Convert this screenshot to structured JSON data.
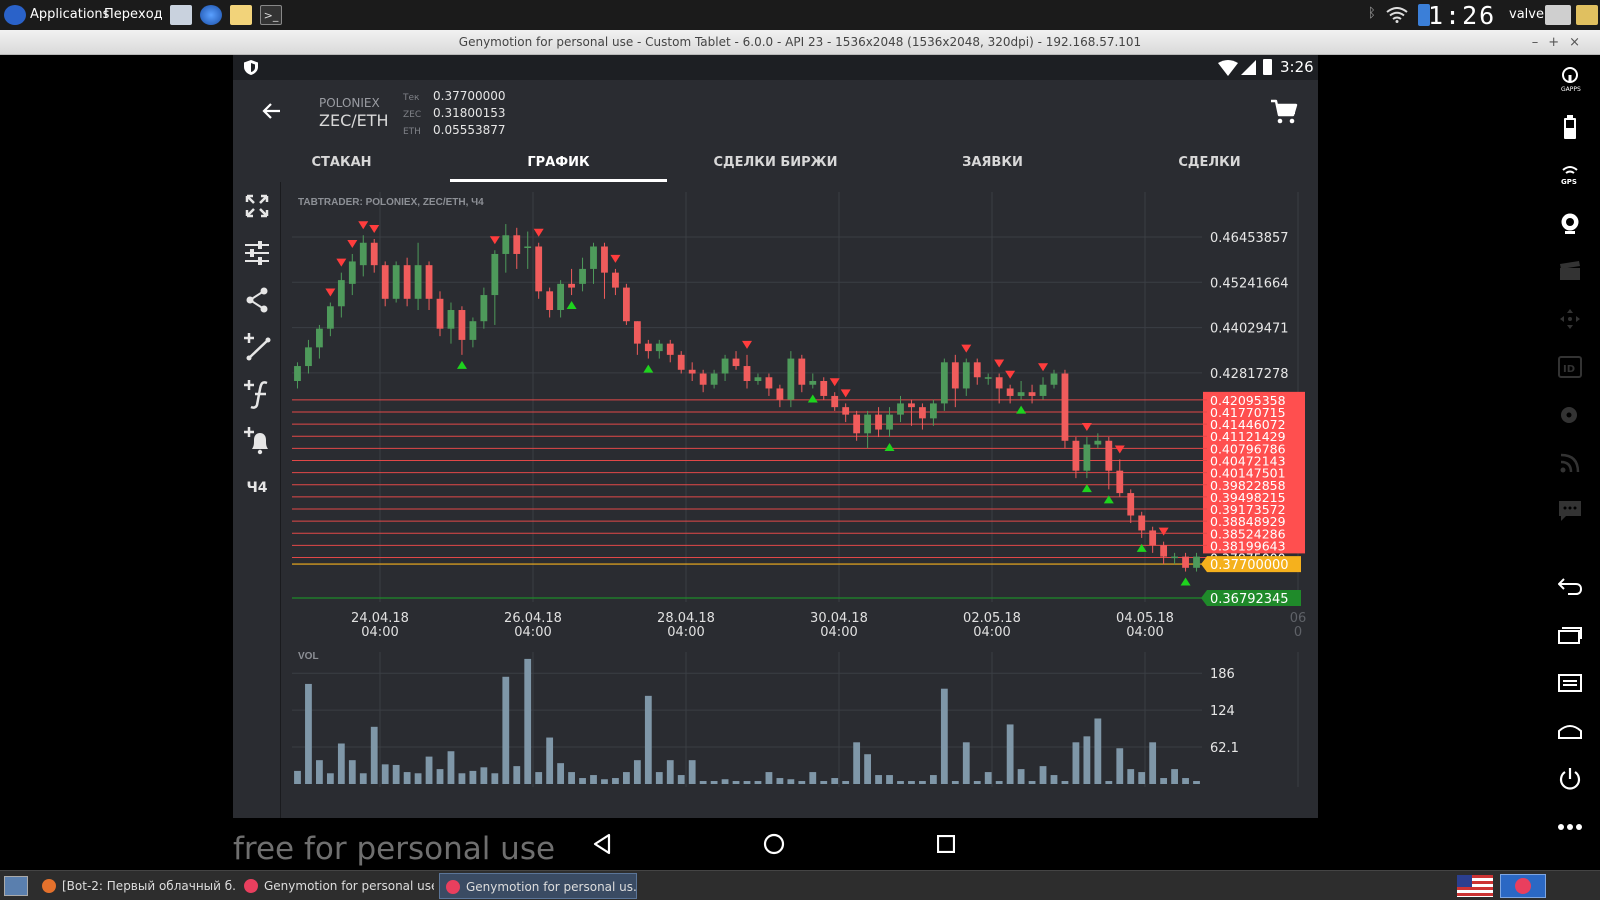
{
  "desktop": {
    "menu_applications": "Applications",
    "menu_places": "Переход",
    "clock": "1:26",
    "user": "valve"
  },
  "window": {
    "title": "Genymotion for personal use - Custom Tablet - 6.0.0 - API 23 - 1536x2048 (1536x2048, 320dpi) - 192.168.57.101"
  },
  "android_status": {
    "time": "3:26"
  },
  "app_header": {
    "exchange": "POLONIEX",
    "pair": "ZEC/ETH",
    "stats": [
      {
        "label": "Тек",
        "value": "0.37700000"
      },
      {
        "label": "ZEC",
        "value": "0.31800153"
      },
      {
        "label": "ETH",
        "value": "0.05553877"
      }
    ]
  },
  "tabs": [
    {
      "label": "СТАКАН",
      "active": false
    },
    {
      "label": "ГРАФИК",
      "active": true
    },
    {
      "label": "СДЕЛКИ БИРЖИ",
      "active": false
    },
    {
      "label": "ЗАЯВКИ",
      "active": false
    },
    {
      "label": "СДЕЛКИ",
      "active": false
    }
  ],
  "toolbar": {
    "tools": [
      "expand-icon",
      "sliders-icon",
      "share-icon",
      "add-line-icon",
      "add-function-icon",
      "add-alert-icon"
    ],
    "interval": "Ч4"
  },
  "chart_data": {
    "type": "candlestick",
    "title": "TABTRADER: POLONIEX, ZEC/ETH, Ч4",
    "x_tick_labels": [
      [
        "24.04.18",
        "04:00"
      ],
      [
        "26.04.18",
        "04:00"
      ],
      [
        "28.04.18",
        "04:00"
      ],
      [
        "30.04.18",
        "04:00"
      ],
      [
        "02.05.18",
        "04:00"
      ],
      [
        "04.05.18",
        "04:00"
      ],
      [
        "06",
        "0"
      ]
    ],
    "price_ticks": [
      "0.46453857",
      "0.45241664",
      "0.44029471",
      "0.42817278"
    ],
    "alert_levels": [
      "0.42095358",
      "0.41770715",
      "0.41446072",
      "0.41121429",
      "0.40796786",
      "0.40472143",
      "0.40147501",
      "0.39822858",
      "0.39498215",
      "0.39173572",
      "0.38848929",
      "0.38524286",
      "0.38199643",
      "0.37875000"
    ],
    "current_price": "0.37700000",
    "low_price": "0.36792345",
    "volume_label": "VOL",
    "volume_ticks": [
      "186",
      "124",
      "62.1"
    ],
    "candles": [
      [
        0.426,
        0.43,
        0.424,
        0.431
      ],
      [
        0.43,
        0.435,
        0.428,
        0.437
      ],
      [
        0.435,
        0.44,
        0.432,
        0.441
      ],
      [
        0.44,
        0.446,
        0.438,
        0.447
      ],
      [
        0.446,
        0.453,
        0.443,
        0.455
      ],
      [
        0.452,
        0.458,
        0.449,
        0.46
      ],
      [
        0.457,
        0.463,
        0.454,
        0.465
      ],
      [
        0.463,
        0.457,
        0.455,
        0.464
      ],
      [
        0.457,
        0.448,
        0.446,
        0.458
      ],
      [
        0.448,
        0.457,
        0.447,
        0.458
      ],
      [
        0.457,
        0.448,
        0.446,
        0.459
      ],
      [
        0.448,
        0.457,
        0.445,
        0.463
      ],
      [
        0.457,
        0.448,
        0.445,
        0.458
      ],
      [
        0.448,
        0.44,
        0.438,
        0.45
      ],
      [
        0.44,
        0.445,
        0.436,
        0.447
      ],
      [
        0.445,
        0.437,
        0.433,
        0.446
      ],
      [
        0.437,
        0.442,
        0.435,
        0.443
      ],
      [
        0.442,
        0.449,
        0.44,
        0.451
      ],
      [
        0.449,
        0.46,
        0.441,
        0.461
      ],
      [
        0.46,
        0.465,
        0.455,
        0.468
      ],
      [
        0.465,
        0.46,
        0.456,
        0.467
      ],
      [
        0.462,
        0.462,
        0.456,
        0.466
      ],
      [
        0.462,
        0.45,
        0.448,
        0.463
      ],
      [
        0.45,
        0.445,
        0.443,
        0.451
      ],
      [
        0.445,
        0.452,
        0.443,
        0.453
      ],
      [
        0.452,
        0.451,
        0.449,
        0.456
      ],
      [
        0.452,
        0.456,
        0.45,
        0.459
      ],
      [
        0.456,
        0.462,
        0.452,
        0.463
      ],
      [
        0.462,
        0.455,
        0.448,
        0.463
      ],
      [
        0.455,
        0.451,
        0.449,
        0.456
      ],
      [
        0.451,
        0.442,
        0.441,
        0.452
      ],
      [
        0.442,
        0.436,
        0.433,
        0.442
      ],
      [
        0.436,
        0.434,
        0.432,
        0.437
      ],
      [
        0.434,
        0.436,
        0.432,
        0.437
      ],
      [
        0.436,
        0.433,
        0.431,
        0.437
      ],
      [
        0.433,
        0.429,
        0.428,
        0.434
      ],
      [
        0.429,
        0.428,
        0.426,
        0.431
      ],
      [
        0.428,
        0.425,
        0.423,
        0.429
      ],
      [
        0.425,
        0.428,
        0.424,
        0.429
      ],
      [
        0.428,
        0.432,
        0.426,
        0.433
      ],
      [
        0.432,
        0.43,
        0.429,
        0.434
      ],
      [
        0.43,
        0.426,
        0.424,
        0.433
      ],
      [
        0.426,
        0.427,
        0.425,
        0.428
      ],
      [
        0.427,
        0.424,
        0.422,
        0.428
      ],
      [
        0.424,
        0.421,
        0.419,
        0.425
      ],
      [
        0.421,
        0.432,
        0.419,
        0.434
      ],
      [
        0.432,
        0.425,
        0.423,
        0.433
      ],
      [
        0.425,
        0.426,
        0.424,
        0.428
      ],
      [
        0.426,
        0.422,
        0.421,
        0.427
      ],
      [
        0.422,
        0.419,
        0.418,
        0.423
      ],
      [
        0.419,
        0.417,
        0.415,
        0.42
      ],
      [
        0.417,
        0.412,
        0.41,
        0.418
      ],
      [
        0.412,
        0.417,
        0.408,
        0.418
      ],
      [
        0.417,
        0.413,
        0.411,
        0.419
      ],
      [
        0.413,
        0.417,
        0.411,
        0.419
      ],
      [
        0.417,
        0.42,
        0.415,
        0.422
      ],
      [
        0.42,
        0.419,
        0.414,
        0.421
      ],
      [
        0.419,
        0.416,
        0.413,
        0.42
      ],
      [
        0.416,
        0.42,
        0.414,
        0.421
      ],
      [
        0.42,
        0.431,
        0.418,
        0.432
      ],
      [
        0.431,
        0.424,
        0.419,
        0.433
      ],
      [
        0.424,
        0.431,
        0.422,
        0.432
      ],
      [
        0.431,
        0.427,
        0.425,
        0.432
      ],
      [
        0.427,
        0.427,
        0.425,
        0.428
      ],
      [
        0.427,
        0.424,
        0.42,
        0.428
      ],
      [
        0.424,
        0.422,
        0.42,
        0.425
      ],
      [
        0.422,
        0.423,
        0.421,
        0.426
      ],
      [
        0.423,
        0.422,
        0.42,
        0.425
      ],
      [
        0.422,
        0.425,
        0.421,
        0.427
      ],
      [
        0.425,
        0.428,
        0.424,
        0.429
      ],
      [
        0.428,
        0.41,
        0.408,
        0.429
      ],
      [
        0.41,
        0.402,
        0.4,
        0.411
      ],
      [
        0.402,
        0.409,
        0.4,
        0.411
      ],
      [
        0.409,
        0.41,
        0.408,
        0.412
      ],
      [
        0.41,
        0.402,
        0.397,
        0.411
      ],
      [
        0.402,
        0.396,
        0.395,
        0.405
      ],
      [
        0.396,
        0.39,
        0.388,
        0.397
      ],
      [
        0.39,
        0.386,
        0.384,
        0.391
      ],
      [
        0.386,
        0.382,
        0.38,
        0.387
      ],
      [
        0.382,
        0.379,
        0.377,
        0.383
      ],
      [
        0.379,
        0.379,
        0.377,
        0.38
      ],
      [
        0.379,
        0.376,
        0.375,
        0.38
      ],
      [
        0.376,
        0.379,
        0.375,
        0.38
      ]
    ],
    "volumes": [
      22,
      168,
      40,
      18,
      68,
      40,
      18,
      96,
      33,
      32,
      20,
      18,
      46,
      25,
      55,
      18,
      22,
      28,
      18,
      180,
      30,
      210,
      20,
      78,
      35,
      20,
      10,
      15,
      8,
      10,
      20,
      40,
      148,
      20,
      40,
      15,
      40,
      5,
      5,
      8,
      5,
      5,
      5,
      20,
      10,
      8,
      5,
      20,
      5,
      10,
      5,
      70,
      50,
      15,
      15,
      5,
      5,
      5,
      15,
      160,
      5,
      70,
      5,
      20,
      5,
      100,
      25,
      5,
      30,
      15,
      5,
      70,
      80,
      110,
      5,
      60,
      25,
      20,
      70,
      10,
      25,
      10,
      5
    ],
    "buy_signals": [
      15,
      25,
      32,
      47,
      54,
      66,
      72,
      74,
      77,
      81
    ],
    "sell_signals": [
      3,
      4,
      5,
      6,
      7,
      18,
      22,
      29,
      41,
      49,
      50,
      61,
      64,
      65,
      68,
      72,
      75,
      79
    ]
  },
  "taskbar": {
    "tasks": [
      {
        "label": "[Bot-2: Первый облачный б..."
      },
      {
        "label": "Genymotion for personal use"
      },
      {
        "label": "Genymotion for personal us..."
      }
    ]
  },
  "watermark": "free for personal use",
  "colors": {
    "bear": "#f05c5c",
    "bull": "#4e9a5b",
    "current": "#f5b11d",
    "low": "#1f8a2a",
    "alert": "#ff4f4f"
  }
}
